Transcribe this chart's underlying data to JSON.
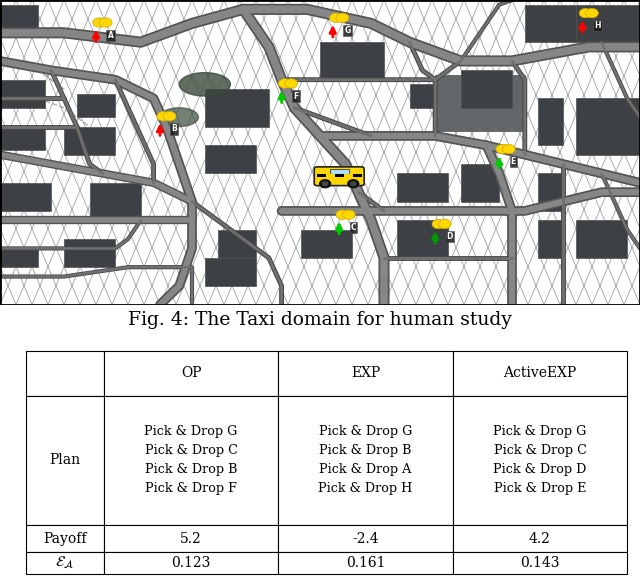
{
  "fig_caption": "Fig. 4: The Taxi domain for human study",
  "col_headers": [
    "",
    "OP",
    "EXP",
    "ActiveEXP"
  ],
  "row1_label": "Plan",
  "plan_op": [
    "Pick & Drop G",
    "Pick & Drop C",
    "Pick & Drop B",
    "Pick & Drop F"
  ],
  "plan_exp": [
    "Pick & Drop G",
    "Pick & Drop B",
    "Pick & Drop A",
    "Pick & Drop H"
  ],
  "plan_activeexp": [
    "Pick & Drop G",
    "Pick & Drop C",
    "Pick & Drop D",
    "Pick & Drop E"
  ],
  "row2_label": "Payoff",
  "payoff_op": "5.2",
  "payoff_exp": "-2.4",
  "payoff_activeexp": "4.2",
  "row3_label": "E_A",
  "ea_op": "0.123",
  "ea_exp": "0.161",
  "ea_activeexp": "0.143",
  "bg_color": "#ffffff",
  "map_dark": "#2e3035",
  "map_road": "#868686",
  "map_road_edge": "#545454",
  "map_block": "#3d4045",
  "map_building": "#636669"
}
